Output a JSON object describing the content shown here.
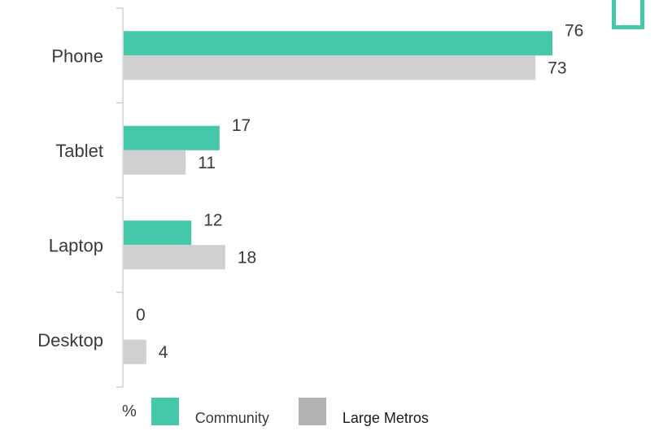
{
  "chart_data": {
    "type": "bar",
    "orientation": "horizontal",
    "categories": [
      "Phone",
      "Tablet",
      "Laptop",
      "Desktop"
    ],
    "series": [
      {
        "name": "Community",
        "values": [
          76,
          17,
          12,
          0
        ],
        "color": "#45c7aa"
      },
      {
        "name": "Large Metros",
        "values": [
          73,
          11,
          18,
          4
        ],
        "color": "#d1d0d0"
      }
    ],
    "xlim": [
      0,
      80
    ],
    "grid": false,
    "legend_position": "bottom-left"
  },
  "legend": {
    "unit": "%",
    "community_label": "Community",
    "community_swatch_color": "#45c7aa",
    "metros_label": "Large Metros",
    "metros_swatch_color": "#b3b3b3"
  },
  "decor": {
    "corner_box_color": "#45c7aa"
  }
}
